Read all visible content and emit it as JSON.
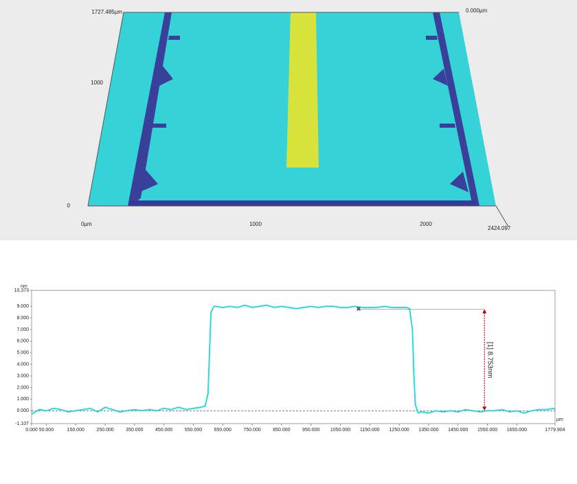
{
  "surface_view": {
    "y_labels": [
      "1727.485µm",
      "1000",
      "0"
    ],
    "x_labels": [
      "0µm",
      "1000",
      "2000",
      "2424.097"
    ],
    "z_label": "0.000µm"
  },
  "chart_data": {
    "type": "line",
    "x_unit": "µm",
    "y_unit": "nm",
    "x": [
      0,
      25,
      50,
      75,
      100,
      125,
      150,
      175,
      200,
      225,
      250,
      275,
      300,
      325,
      350,
      375,
      400,
      425,
      450,
      475,
      500,
      525,
      550,
      575,
      590,
      600,
      605,
      610,
      620,
      625,
      650,
      675,
      700,
      725,
      750,
      775,
      800,
      825,
      850,
      875,
      900,
      925,
      950,
      975,
      1000,
      1025,
      1050,
      1075,
      1100,
      1125,
      1150,
      1175,
      1200,
      1225,
      1250,
      1275,
      1285,
      1295,
      1300,
      1305,
      1315,
      1325,
      1350,
      1375,
      1400,
      1425,
      1450,
      1475,
      1500,
      1525,
      1550,
      1575,
      1600,
      1625,
      1650,
      1675,
      1700,
      1725,
      1750,
      1775,
      1779.904
    ],
    "series": [
      {
        "color": "#2ad8dc",
        "values": [
          -0.3,
          0.1,
          0.0,
          0.2,
          0.1,
          -0.1,
          0.0,
          0.1,
          0.2,
          -0.1,
          0.3,
          0.1,
          -0.1,
          0.0,
          0.1,
          0.0,
          0.1,
          0.0,
          0.2,
          0.1,
          0.3,
          0.1,
          0.2,
          0.3,
          0.4,
          1.5,
          5.0,
          8.5,
          9.0,
          9.0,
          8.9,
          9.0,
          8.9,
          9.1,
          8.9,
          9.0,
          9.1,
          8.9,
          9.0,
          8.9,
          8.8,
          8.9,
          9.0,
          8.9,
          9.0,
          9.0,
          8.9,
          8.9,
          9.0,
          8.9,
          8.9,
          8.9,
          9.0,
          8.9,
          8.9,
          8.9,
          8.8,
          7.0,
          3.0,
          0.5,
          -0.2,
          -0.1,
          -0.2,
          0.0,
          -0.1,
          0.0,
          -0.1,
          0.1,
          0.0,
          -0.1,
          0.0,
          0.0,
          0.1,
          -0.1,
          0.0,
          -0.2,
          0.0,
          0.1,
          0.1,
          0.2,
          0.1
        ]
      }
    ],
    "xlim": [
      0,
      1779.904
    ],
    "ylim": [
      -1.107,
      10.373
    ],
    "xticks": [
      {
        "value": 0,
        "label": "0.000"
      },
      {
        "value": 50,
        "label": "50.000"
      },
      {
        "value": 150,
        "label": "150.000"
      },
      {
        "value": 250,
        "label": "250.000"
      },
      {
        "value": 350,
        "label": "350.000"
      },
      {
        "value": 450,
        "label": "450.000"
      },
      {
        "value": 550,
        "label": "550.000"
      },
      {
        "value": 650,
        "label": "650.000"
      },
      {
        "value": 750,
        "label": "750.000"
      },
      {
        "value": 850,
        "label": "850.000"
      },
      {
        "value": 950,
        "label": "950.000"
      },
      {
        "value": 1050,
        "label": "1050.000"
      },
      {
        "value": 1150,
        "label": "1150.000"
      },
      {
        "value": 1250,
        "label": "1250.000"
      },
      {
        "value": 1350,
        "label": "1350.000"
      },
      {
        "value": 1450,
        "label": "1450.000"
      },
      {
        "value": 1550,
        "label": "1550.000"
      },
      {
        "value": 1650,
        "label": "1650.000"
      },
      1779.904
    ],
    "yticks": [
      -1.107,
      {
        "value": 0,
        "label": "0.000"
      },
      {
        "value": 1,
        "label": "1.000"
      },
      {
        "value": 2,
        "label": "2.000"
      },
      {
        "value": 3,
        "label": "3.000"
      },
      {
        "value": 4,
        "label": "4.000"
      },
      {
        "value": 5,
        "label": "5.000"
      },
      {
        "value": 6,
        "label": "6.000"
      },
      {
        "value": 7,
        "label": "7.000"
      },
      {
        "value": 8,
        "label": "8.000"
      },
      {
        "value": 9,
        "label": "9.000"
      },
      10.373
    ],
    "reference_y": 0,
    "annotation": {
      "label": "[1] 8.753nm",
      "x": 1540,
      "from_x": 1112,
      "y_from": 0,
      "y_to": 8.753
    }
  }
}
